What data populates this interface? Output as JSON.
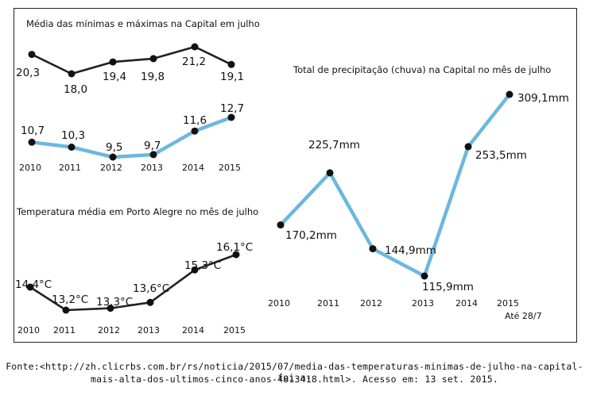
{
  "chart_data": [
    {
      "type": "line",
      "title": "Média das mínimas e máximas na Capital em julho",
      "categories": [
        "2010",
        "2011",
        "2012",
        "2013",
        "2014",
        "2015"
      ],
      "series": [
        {
          "values": [
            20.3,
            18.0,
            19.4,
            19.8,
            21.2,
            19.1
          ],
          "labels": [
            "20,3",
            "18,0",
            "19,4",
            "19,8",
            "21,2",
            "19,1"
          ],
          "color": "#222222"
        },
        {
          "values": [
            10.7,
            10.3,
            9.5,
            9.7,
            11.6,
            12.7
          ],
          "labels": [
            "10,7",
            "10,3",
            "9,5",
            "9,7",
            "11,6",
            "12,7"
          ],
          "color": "#6cb8dd"
        }
      ]
    },
    {
      "type": "line",
      "title": "Temperatura média em Porto Alegre no mês de julho",
      "categories": [
        "2010",
        "2011",
        "2012",
        "2013",
        "2014",
        "2015"
      ],
      "series": [
        {
          "values": [
            14.4,
            13.2,
            13.3,
            13.6,
            15.3,
            16.1
          ],
          "labels": [
            "14,4°C",
            "13,2°C",
            "13,3°C",
            "13,6°C",
            "15,3°C",
            "16,1°C"
          ],
          "color": "#222222"
        }
      ]
    },
    {
      "type": "line",
      "title": "Total de precipitação (chuva) na Capital no mês de julho",
      "categories": [
        "2010",
        "2011",
        "2012",
        "2013",
        "2014",
        "2015"
      ],
      "category_note": "Até 28/7",
      "series": [
        {
          "values": [
            170.2,
            225.7,
            144.9,
            115.9,
            253.5,
            309.1
          ],
          "labels": [
            "170,2mm",
            "225,7mm",
            "144,9mm",
            "115,9mm",
            "253,5mm",
            "309,1mm"
          ],
          "color": "#6cb8dd"
        }
      ]
    }
  ],
  "source": {
    "line1": "Fonte:<http://zh.clicrbs.com.br/rs/noticia/2015/07/media-das-temperaturas-minimas-de-julho-na-capital-foi-a-",
    "line2": "mais-alta-dos-ultimos-cinco-anos-4813418.html>. Acesso em: 13 set. 2015."
  }
}
